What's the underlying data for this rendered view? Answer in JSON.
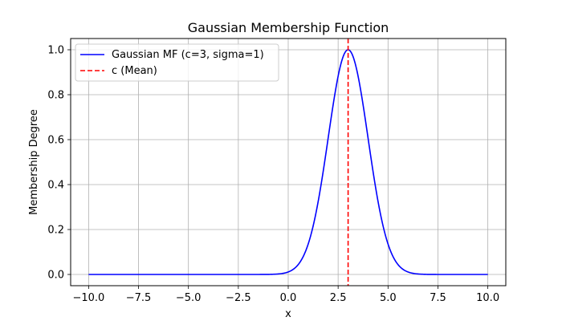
{
  "chart_data": {
    "type": "line",
    "title": "Gaussian Membership Function",
    "xlabel": "x",
    "ylabel": "Membership Degree",
    "xlim": [
      -10.9,
      10.9
    ],
    "ylim": [
      -0.05,
      1.05
    ],
    "x_ticks": [
      -10.0,
      -7.5,
      -5.0,
      -2.5,
      0.0,
      2.5,
      5.0,
      7.5,
      10.0
    ],
    "x_tick_labels": [
      "−10.0",
      "−7.5",
      "−5.0",
      "−2.5",
      "0.0",
      "2.5",
      "5.0",
      "7.5",
      "10.0"
    ],
    "y_ticks": [
      0.0,
      0.2,
      0.4,
      0.6,
      0.8,
      1.0
    ],
    "y_tick_labels": [
      "0.0",
      "0.2",
      "0.4",
      "0.6",
      "0.8",
      "1.0"
    ],
    "grid": true,
    "legend_position": "top-left",
    "series": [
      {
        "name": "Gaussian MF (c=3, sigma=1)",
        "kind": "line",
        "style": "solid",
        "color": "#0000ff",
        "function": "gaussian",
        "c": 3,
        "sigma": 1,
        "x_range": [
          -10,
          10
        ],
        "x": [
          -10,
          -5,
          -2,
          -1,
          0,
          0.5,
          1,
          1.5,
          2,
          2.5,
          3,
          3.5,
          4,
          4.5,
          5,
          5.5,
          6,
          7,
          8,
          10
        ],
        "values": [
          0.0,
          0.0,
          0.0,
          0.0,
          0.011,
          0.044,
          0.135,
          0.325,
          0.607,
          0.882,
          1.0,
          0.882,
          0.607,
          0.325,
          0.135,
          0.044,
          0.011,
          0.0,
          0.0,
          0.0
        ]
      },
      {
        "name": "c (Mean)",
        "kind": "vline",
        "style": "dashed",
        "color": "#ff0000",
        "x": 3
      }
    ]
  }
}
